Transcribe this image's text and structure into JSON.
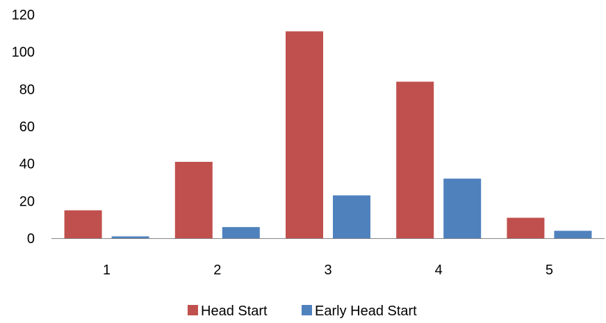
{
  "chart_data": {
    "type": "bar",
    "categories": [
      "1",
      "2",
      "3",
      "4",
      "5"
    ],
    "series": [
      {
        "name": "Head Start",
        "values": [
          15,
          41,
          111,
          84,
          11
        ],
        "color": "#c0504d"
      },
      {
        "name": "Early Head Start",
        "values": [
          1,
          6,
          23,
          32,
          4
        ],
        "color": "#4f81bd"
      }
    ],
    "ylim": [
      0,
      120
    ],
    "yticks": [
      0,
      20,
      40,
      60,
      80,
      100,
      120
    ],
    "grid": false,
    "legend_position": "bottom",
    "title": "",
    "xlabel": "",
    "ylabel": ""
  }
}
